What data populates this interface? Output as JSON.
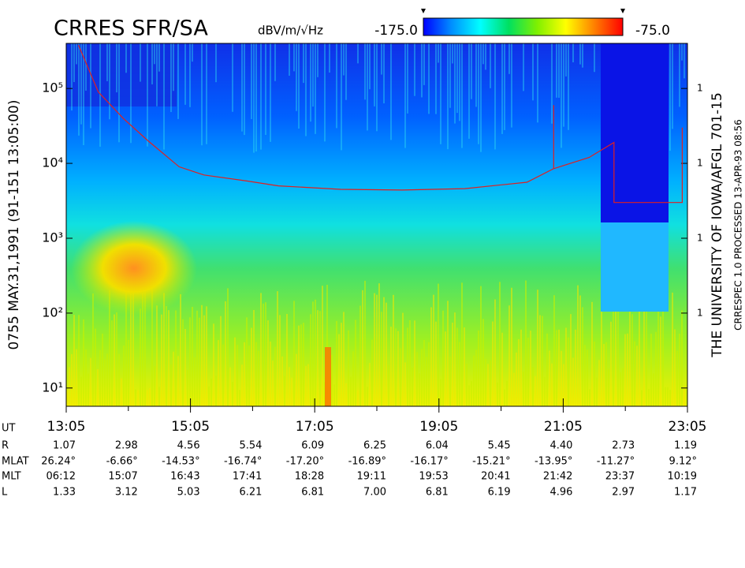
{
  "chart_data": {
    "type": "spectrogram",
    "title": "CRRES SFR/SA",
    "left_label": "0755   MAY.31,1991   (91-151 13:05:00)",
    "right_label": "THE UNIVERSITY OF IOWA/AFGL 701-15",
    "right_sublabel": "CRRESPEC 1.0  PROCESSED 13-APR-93  08:56",
    "colorbar": {
      "unit": "dBV/m/√Hz",
      "colors": [
        "#0000ff",
        "#0090ff",
        "#00ffff",
        "#00e060",
        "#80f000",
        "#ffff00",
        "#ff8000",
        "#ff0000"
      ],
      "lim": [
        {
          "value": -175,
          "label": "-175.0"
        },
        {
          "value": -75,
          "label": "-75.0"
        }
      ]
    },
    "log_y": true,
    "ylim": [
      5.7,
      400000
    ],
    "yticks": [
      {
        "value": 10,
        "label": "10¹"
      },
      {
        "value": 100,
        "label": "10²"
      },
      {
        "value": 1000,
        "label": "10³"
      },
      {
        "value": 10000,
        "label": "10⁴"
      },
      {
        "value": 100000,
        "label": "10⁵"
      }
    ],
    "right_tick_labels": [
      "1",
      "1",
      "1",
      "1"
    ],
    "xlim": [
      13.0833,
      23.0833
    ],
    "xticks": [
      {
        "value": 13.0833,
        "label": "13:05"
      },
      {
        "value": 15.0833,
        "label": "15:05"
      },
      {
        "value": 17.0833,
        "label": "17:05"
      },
      {
        "value": 19.0833,
        "label": "19:05"
      },
      {
        "value": 21.0833,
        "label": "21:05"
      },
      {
        "value": 23.0833,
        "label": "23:05"
      }
    ],
    "xminor": [
      14.0833,
      16.0833,
      18.0833,
      20.0833,
      22.0833
    ],
    "series": [
      {
        "color": "#e02020",
        "x": [
          13.28,
          13.6,
          14.0,
          14.4,
          14.9,
          15.3,
          16.0,
          16.5,
          17.5,
          18.5,
          19.5,
          20.5,
          20.93,
          20.93,
          20.93,
          20.93,
          21.5,
          21.9,
          21.9,
          23.0,
          23.0
        ],
        "values": [
          380000,
          90000,
          40000,
          20000,
          9000,
          7000,
          5800,
          5000,
          4500,
          4400,
          4600,
          5600,
          8500,
          60000,
          null,
          8500,
          12000,
          19000,
          3000,
          3000,
          30000
        ]
      }
    ],
    "ephemeris": {
      "time_label": "UT",
      "rows": [
        {
          "label": "R",
          "values": [
            "1.07",
            "2.98",
            "4.56",
            "5.54",
            "6.09",
            "6.25",
            "6.04",
            "5.45",
            "4.40",
            "2.73",
            "1.19"
          ]
        },
        {
          "label": "MLAT",
          "values": [
            "26.24°",
            "-6.66°",
            "-14.53°",
            "-16.74°",
            "-17.20°",
            "-16.89°",
            "-16.17°",
            "-15.21°",
            "-13.95°",
            "-11.27°",
            "9.12°"
          ]
        },
        {
          "label": "MLT",
          "values": [
            "06:12",
            "15:07",
            "16:43",
            "17:41",
            "18:28",
            "19:11",
            "19:53",
            "20:41",
            "21:42",
            "23:37",
            "10:19"
          ]
        },
        {
          "label": "L",
          "values": [
            "1.33",
            "3.12",
            "5.03",
            "6.21",
            "6.81",
            "7.00",
            "6.81",
            "6.19",
            "4.96",
            "2.97",
            "1.17"
          ]
        }
      ]
    }
  }
}
